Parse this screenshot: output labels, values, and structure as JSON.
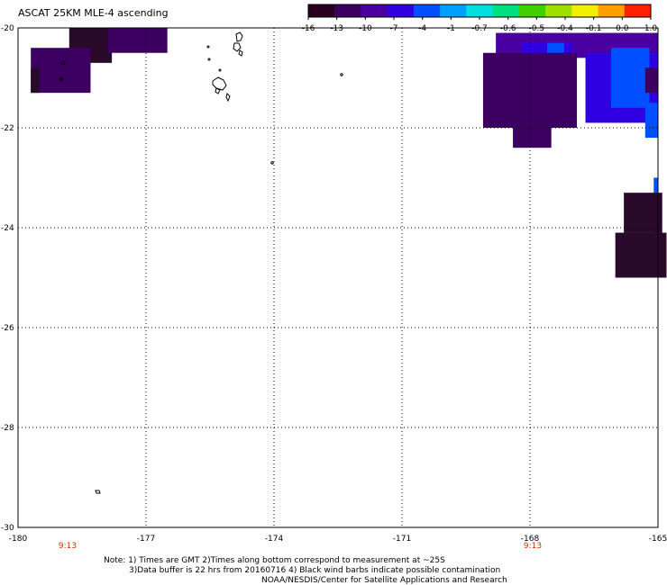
{
  "title": "ASCAT 25KM MLE-4 ascending",
  "colorbar": {
    "labels": [
      "-16",
      "-13",
      "-10",
      "-7",
      "-4",
      "-1",
      "-0.7",
      "-0.6",
      "-0.5",
      "-0.4",
      "-0.1",
      "0.0",
      "1.0"
    ],
    "colors": [
      "#2a0020",
      "#3c0060",
      "#4a00a0",
      "#3000e0",
      "#0050ff",
      "#00a0ff",
      "#00e0e0",
      "#00e080",
      "#40d000",
      "#a0e000",
      "#f0f000",
      "#ffa000",
      "#ff2000"
    ]
  },
  "axes": {
    "lon_labels": [
      "-180",
      "-177",
      "-174",
      "-171",
      "-168",
      "-165"
    ],
    "lat_labels": [
      "-20",
      "-22",
      "-24",
      "-26",
      "-28",
      "-30"
    ],
    "time_labels": [
      "9:13",
      "9:13"
    ]
  },
  "notes": {
    "line1": "Note: 1) Times are GMT 2)Times along bottom correspond to measurement at ~25S",
    "line2": "3)Data buffer is 22 hrs from 20160716 4) Black wind barbs indicate possible contamination",
    "line3": "NOAA/NESDIS/Center for Satellite Applications and Research"
  },
  "data_cells": [
    {
      "lon": -178.8,
      "lat": -20.0,
      "w": 1.0,
      "h": 0.7,
      "color": "#2a0a2a"
    },
    {
      "lon": -177.9,
      "lat": -20.0,
      "w": 1.4,
      "h": 0.5,
      "color": "#3c0060"
    },
    {
      "lon": -179.7,
      "lat": -20.4,
      "w": 1.4,
      "h": 0.9,
      "color": "#3c0060"
    },
    {
      "lon": -179.7,
      "lat": -20.8,
      "w": 0.2,
      "h": 0.5,
      "color": "#2a0a2a"
    },
    {
      "lon": -168.8,
      "lat": -20.1,
      "w": 3.8,
      "h": 0.5,
      "color": "#4a00a0"
    },
    {
      "lon": -168.2,
      "lat": -20.3,
      "w": 1.2,
      "h": 0.8,
      "color": "#3000e0"
    },
    {
      "lon": -167.6,
      "lat": -20.3,
      "w": 0.4,
      "h": 1.0,
      "color": "#0050ff"
    },
    {
      "lon": -166.7,
      "lat": -20.5,
      "w": 1.7,
      "h": 1.4,
      "color": "#3000e0"
    },
    {
      "lon": -166.1,
      "lat": -20.4,
      "w": 0.9,
      "h": 1.2,
      "color": "#0050ff"
    },
    {
      "lon": -169.1,
      "lat": -20.5,
      "w": 2.2,
      "h": 1.5,
      "color": "#3c0060"
    },
    {
      "lon": -168.4,
      "lat": -21.6,
      "w": 0.9,
      "h": 0.8,
      "color": "#3c0060"
    },
    {
      "lon": -165.3,
      "lat": -20.8,
      "w": 0.3,
      "h": 0.5,
      "color": "#3c0060"
    },
    {
      "lon": -165.3,
      "lat": -21.5,
      "w": 0.3,
      "h": 0.7,
      "color": "#0050ff"
    },
    {
      "lon": -165.1,
      "lat": -23.0,
      "w": 0.1,
      "h": 1.2,
      "color": "#0050ff"
    },
    {
      "lon": -165.8,
      "lat": -23.3,
      "w": 0.9,
      "h": 0.8,
      "color": "#2a0a2a"
    },
    {
      "lon": -166.0,
      "lat": -24.1,
      "w": 1.2,
      "h": 0.9,
      "color": "#2a0a2a"
    }
  ]
}
